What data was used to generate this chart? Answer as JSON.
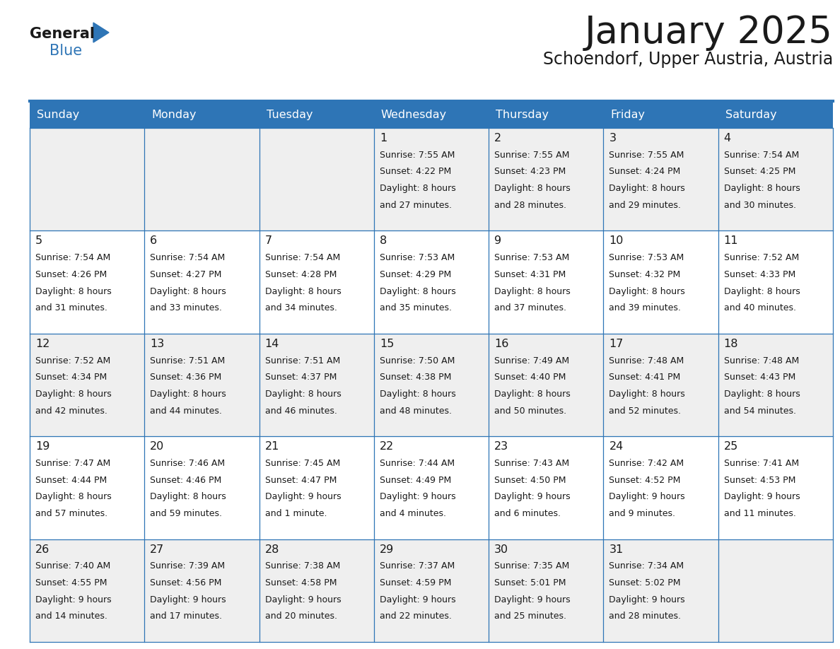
{
  "title": "January 2025",
  "subtitle": "Schoendorf, Upper Austria, Austria",
  "header_bg": "#2E75B6",
  "header_text_color": "#FFFFFF",
  "weekdays": [
    "Sunday",
    "Monday",
    "Tuesday",
    "Wednesday",
    "Thursday",
    "Friday",
    "Saturday"
  ],
  "cell_bg_odd": "#EFEFEF",
  "cell_bg_even": "#FFFFFF",
  "text_color": "#1a1a1a",
  "days": [
    {
      "day": null,
      "sunrise": null,
      "sunset": null,
      "daylight_h": null,
      "daylight_m": null
    },
    {
      "day": null,
      "sunrise": null,
      "sunset": null,
      "daylight_h": null,
      "daylight_m": null
    },
    {
      "day": null,
      "sunrise": null,
      "sunset": null,
      "daylight_h": null,
      "daylight_m": null
    },
    {
      "day": 1,
      "sunrise": "7:55 AM",
      "sunset": "4:22 PM",
      "daylight_h": "8 hours",
      "daylight_m": "and 27 minutes."
    },
    {
      "day": 2,
      "sunrise": "7:55 AM",
      "sunset": "4:23 PM",
      "daylight_h": "8 hours",
      "daylight_m": "and 28 minutes."
    },
    {
      "day": 3,
      "sunrise": "7:55 AM",
      "sunset": "4:24 PM",
      "daylight_h": "8 hours",
      "daylight_m": "and 29 minutes."
    },
    {
      "day": 4,
      "sunrise": "7:54 AM",
      "sunset": "4:25 PM",
      "daylight_h": "8 hours",
      "daylight_m": "and 30 minutes."
    },
    {
      "day": 5,
      "sunrise": "7:54 AM",
      "sunset": "4:26 PM",
      "daylight_h": "8 hours",
      "daylight_m": "and 31 minutes."
    },
    {
      "day": 6,
      "sunrise": "7:54 AM",
      "sunset": "4:27 PM",
      "daylight_h": "8 hours",
      "daylight_m": "and 33 minutes."
    },
    {
      "day": 7,
      "sunrise": "7:54 AM",
      "sunset": "4:28 PM",
      "daylight_h": "8 hours",
      "daylight_m": "and 34 minutes."
    },
    {
      "day": 8,
      "sunrise": "7:53 AM",
      "sunset": "4:29 PM",
      "daylight_h": "8 hours",
      "daylight_m": "and 35 minutes."
    },
    {
      "day": 9,
      "sunrise": "7:53 AM",
      "sunset": "4:31 PM",
      "daylight_h": "8 hours",
      "daylight_m": "and 37 minutes."
    },
    {
      "day": 10,
      "sunrise": "7:53 AM",
      "sunset": "4:32 PM",
      "daylight_h": "8 hours",
      "daylight_m": "and 39 minutes."
    },
    {
      "day": 11,
      "sunrise": "7:52 AM",
      "sunset": "4:33 PM",
      "daylight_h": "8 hours",
      "daylight_m": "and 40 minutes."
    },
    {
      "day": 12,
      "sunrise": "7:52 AM",
      "sunset": "4:34 PM",
      "daylight_h": "8 hours",
      "daylight_m": "and 42 minutes."
    },
    {
      "day": 13,
      "sunrise": "7:51 AM",
      "sunset": "4:36 PM",
      "daylight_h": "8 hours",
      "daylight_m": "and 44 minutes."
    },
    {
      "day": 14,
      "sunrise": "7:51 AM",
      "sunset": "4:37 PM",
      "daylight_h": "8 hours",
      "daylight_m": "and 46 minutes."
    },
    {
      "day": 15,
      "sunrise": "7:50 AM",
      "sunset": "4:38 PM",
      "daylight_h": "8 hours",
      "daylight_m": "and 48 minutes."
    },
    {
      "day": 16,
      "sunrise": "7:49 AM",
      "sunset": "4:40 PM",
      "daylight_h": "8 hours",
      "daylight_m": "and 50 minutes."
    },
    {
      "day": 17,
      "sunrise": "7:48 AM",
      "sunset": "4:41 PM",
      "daylight_h": "8 hours",
      "daylight_m": "and 52 minutes."
    },
    {
      "day": 18,
      "sunrise": "7:48 AM",
      "sunset": "4:43 PM",
      "daylight_h": "8 hours",
      "daylight_m": "and 54 minutes."
    },
    {
      "day": 19,
      "sunrise": "7:47 AM",
      "sunset": "4:44 PM",
      "daylight_h": "8 hours",
      "daylight_m": "and 57 minutes."
    },
    {
      "day": 20,
      "sunrise": "7:46 AM",
      "sunset": "4:46 PM",
      "daylight_h": "8 hours",
      "daylight_m": "and 59 minutes."
    },
    {
      "day": 21,
      "sunrise": "7:45 AM",
      "sunset": "4:47 PM",
      "daylight_h": "9 hours",
      "daylight_m": "and 1 minute."
    },
    {
      "day": 22,
      "sunrise": "7:44 AM",
      "sunset": "4:49 PM",
      "daylight_h": "9 hours",
      "daylight_m": "and 4 minutes."
    },
    {
      "day": 23,
      "sunrise": "7:43 AM",
      "sunset": "4:50 PM",
      "daylight_h": "9 hours",
      "daylight_m": "and 6 minutes."
    },
    {
      "day": 24,
      "sunrise": "7:42 AM",
      "sunset": "4:52 PM",
      "daylight_h": "9 hours",
      "daylight_m": "and 9 minutes."
    },
    {
      "day": 25,
      "sunrise": "7:41 AM",
      "sunset": "4:53 PM",
      "daylight_h": "9 hours",
      "daylight_m": "and 11 minutes."
    },
    {
      "day": 26,
      "sunrise": "7:40 AM",
      "sunset": "4:55 PM",
      "daylight_h": "9 hours",
      "daylight_m": "and 14 minutes."
    },
    {
      "day": 27,
      "sunrise": "7:39 AM",
      "sunset": "4:56 PM",
      "daylight_h": "9 hours",
      "daylight_m": "and 17 minutes."
    },
    {
      "day": 28,
      "sunrise": "7:38 AM",
      "sunset": "4:58 PM",
      "daylight_h": "9 hours",
      "daylight_m": "and 20 minutes."
    },
    {
      "day": 29,
      "sunrise": "7:37 AM",
      "sunset": "4:59 PM",
      "daylight_h": "9 hours",
      "daylight_m": "and 22 minutes."
    },
    {
      "day": 30,
      "sunrise": "7:35 AM",
      "sunset": "5:01 PM",
      "daylight_h": "9 hours",
      "daylight_m": "and 25 minutes."
    },
    {
      "day": 31,
      "sunrise": "7:34 AM",
      "sunset": "5:02 PM",
      "daylight_h": "9 hours",
      "daylight_m": "and 28 minutes."
    },
    {
      "day": null,
      "sunrise": null,
      "sunset": null,
      "daylight_h": null,
      "daylight_m": null
    }
  ]
}
